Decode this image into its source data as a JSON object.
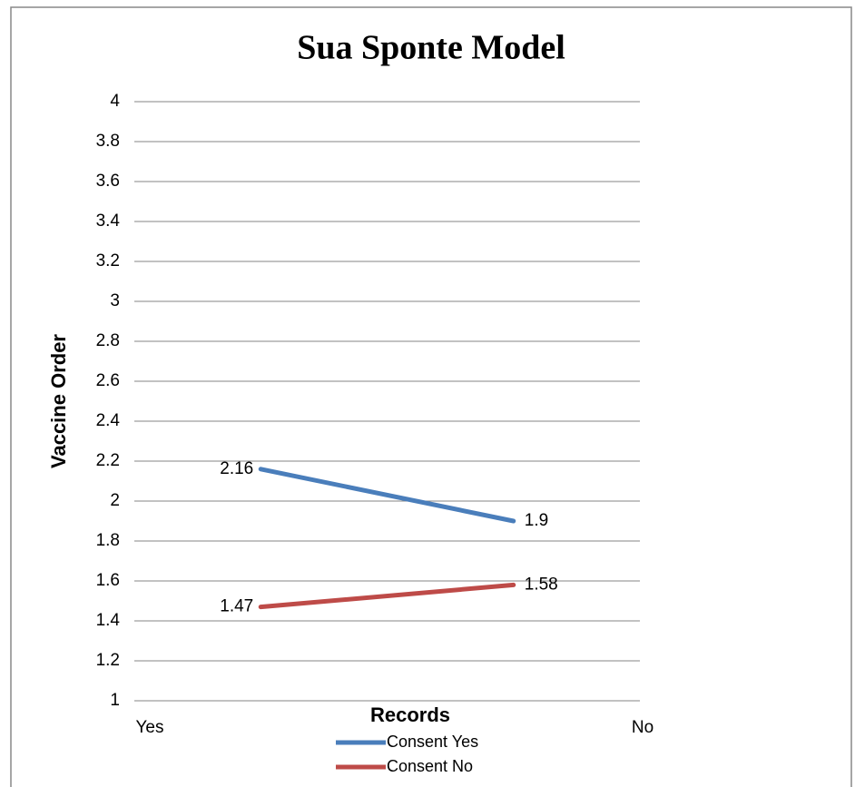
{
  "chart_data": {
    "type": "line",
    "title": "Sua Sponte Model",
    "x_label": "Records",
    "y_label": "Vaccine Order",
    "categories": [
      "Yes",
      "No"
    ],
    "series": [
      {
        "name": "Consent Yes",
        "color": "#4a7ebb",
        "values": [
          2.16,
          1.9
        ]
      },
      {
        "name": "Consent No",
        "color": "#be4b48",
        "values": [
          1.47,
          1.58
        ]
      }
    ],
    "ylim": [
      1,
      4
    ],
    "yticks": [
      1,
      1.2,
      1.4,
      1.6,
      1.8,
      2,
      2.2,
      2.4,
      2.6,
      2.8,
      3,
      3.2,
      3.4,
      3.6,
      3.8,
      4
    ],
    "grid": true,
    "legend": "bottom"
  }
}
